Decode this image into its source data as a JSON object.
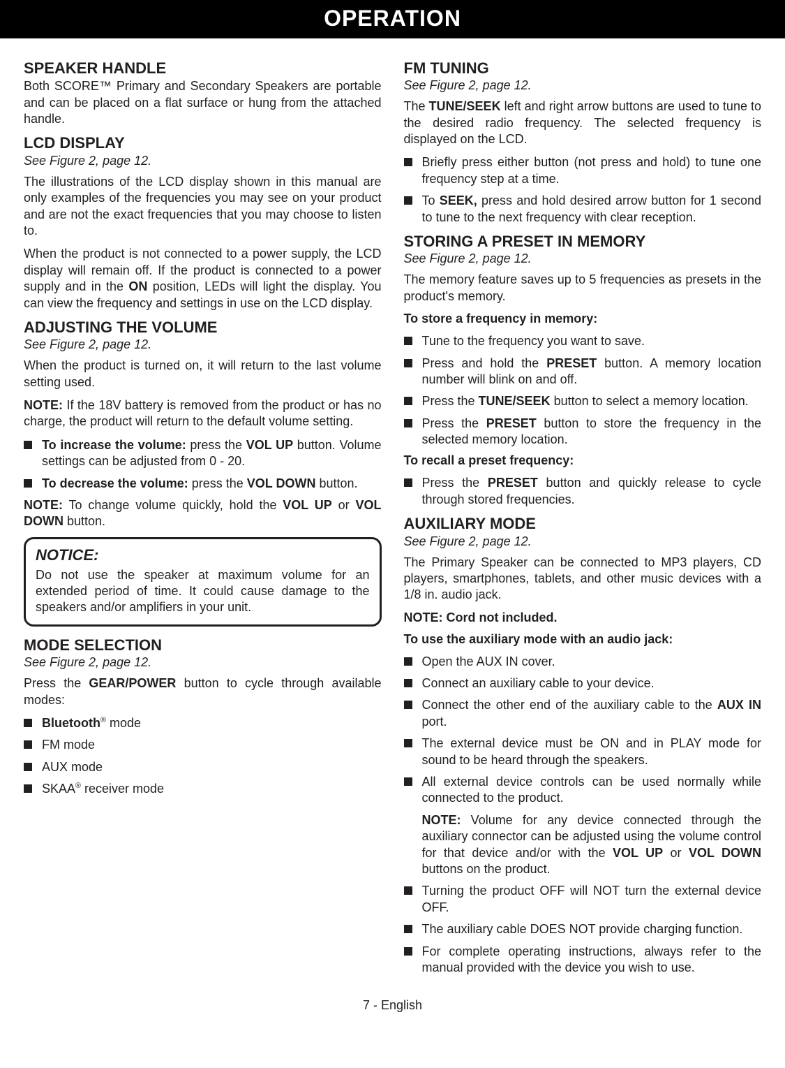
{
  "header": {
    "title": "OPERATION"
  },
  "footer": {
    "pageLabel": "7 - English"
  },
  "left": {
    "speakerHandle": {
      "title": "SPEAKER HANDLE",
      "body": "Both SCORE™ Primary and Secondary Speakers are portable and can be placed on a flat surface or hung from the attached handle."
    },
    "lcd": {
      "title": "LCD DISPLAY",
      "seeFig": "See Figure 2, page 12.",
      "p1": "The illustrations of the LCD display shown in this manual are only examples of the frequencies you may see on your product and are not the exact frequencies that you may choose to listen to.",
      "p2_a": "When the product is not connected to a power supply, the LCD display will remain off. If the product is connected to a power supply and in the ",
      "p2_on": "ON",
      "p2_b": " position, LEDs will light the display. You can view the frequency and settings in use on the LCD display."
    },
    "volume": {
      "title": "ADJUSTING THE VOLUME",
      "seeFig": "See Figure 2, page 12.",
      "p1": "When the product is turned on, it will return to the last volume setting used.",
      "note1_label": "NOTE:",
      "note1_text": " If the 18V battery is removed from the product or has no charge, the product will return to the default volume setting.",
      "li1_b1": "To increase the volume:",
      "li1_a": " press the ",
      "li1_b2": "VOL UP",
      "li1_c": " button. Volume settings can be adjusted from 0 - 20.",
      "li2_b1": "To decrease the volume:",
      "li2_a": " press the ",
      "li2_b2": "VOL DOWN",
      "li2_c": " button.",
      "note2_label": "NOTE:",
      "note2_a": " To change volume quickly, hold the ",
      "note2_b1": "VOL UP",
      "note2_mid": " or ",
      "note2_b2": "VOL DOWN",
      "note2_c": " button."
    },
    "notice": {
      "title": "NOTICE:",
      "text": "Do not use the speaker at maximum volume for an extended period of time. It could cause damage to the speakers and/or amplifiers in your unit."
    },
    "mode": {
      "title": "MODE SELECTION",
      "seeFig": "See Figure 2, page 12.",
      "p1_a": "Press the ",
      "p1_b": "GEAR/POWER",
      "p1_c": " button to cycle through available modes:",
      "li1_b": "Bluetooth",
      "li1_sup": "®",
      "li1_t": " mode",
      "li2": "FM mode",
      "li3": "AUX mode",
      "li4_a": "SKAA",
      "li4_sup": "®",
      "li4_b": " receiver mode"
    }
  },
  "right": {
    "fm": {
      "title": "FM TUNING",
      "seeFig": "See Figure 2, page 12.",
      "p1_a": "The ",
      "p1_b": "TUNE/SEEK",
      "p1_c": " left and right arrow buttons are used to tune to the desired radio frequency. The selected frequency is displayed on the LCD.",
      "li1": "Briefly press either button (not press and hold) to tune one frequency step at a time.",
      "li2_a": "To ",
      "li2_b": "SEEK,",
      "li2_c": " press and hold desired arrow button for 1 second to tune to the next frequency with clear reception."
    },
    "preset": {
      "title": "STORING A PRESET IN MEMORY",
      "seeFig": "See Figure 2, page 12.",
      "p1": "The memory feature saves up to 5 frequencies as presets in the product's memory.",
      "storeLabel": "To store a frequency in memory:",
      "s1": "Tune to the frequency you want to save.",
      "s2_a": "Press and hold the ",
      "s2_b": "PRESET",
      "s2_c": " button. A memory location number will blink on and off.",
      "s3_a": "Press the ",
      "s3_b": "TUNE/SEEK",
      "s3_c": " button to select a memory location.",
      "s4_a": "Press the ",
      "s4_b": "PRESET",
      "s4_c": " button to store the frequency in the selected memory location.",
      "recallLabel": "To recall a preset frequency:",
      "r1_a": "Press the ",
      "r1_b": "PRESET",
      "r1_c": " button and quickly release to cycle through stored frequencies."
    },
    "aux": {
      "title": "AUXILIARY MODE",
      "seeFig": "See Figure 2, page 12.",
      "p1": "The Primary Speaker can be connected to MP3 players, CD players, smartphones, tablets, and other music devices with a 1/8 in. audio jack.",
      "noteCord": "NOTE: Cord not included.",
      "useLabel": "To use the auxiliary mode with an audio jack:",
      "a1": "Open the AUX IN cover.",
      "a2": "Connect an auxiliary cable to your device.",
      "a3_a": "Connect the other end of the auxiliary cable to the ",
      "a3_b": "AUX IN",
      "a3_c": " port.",
      "a4": "The external device must be ON and in PLAY mode for sound to be heard through the speakers.",
      "a5": "All external device controls can be used normally while connected to the product.",
      "a5n_label": "NOTE:",
      "a5n_a": " Volume for any device connected through the auxiliary connector can be adjusted using the volume control for that device and/or with the ",
      "a5n_b1": "VOL UP",
      "a5n_mid": " or ",
      "a5n_b2": "VOL DOWN",
      "a5n_c": " buttons on the product.",
      "a6": "Turning the product OFF will NOT turn the external device OFF.",
      "a7": "The auxiliary cable DOES NOT provide charging function.",
      "a8": "For complete operating instructions, always refer to the manual provided with the device you wish to use."
    }
  }
}
